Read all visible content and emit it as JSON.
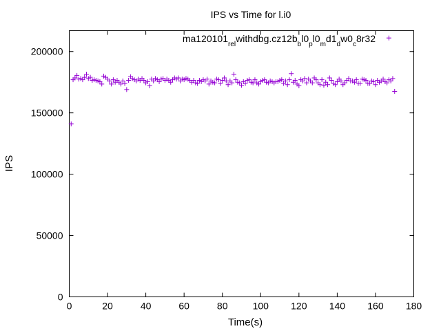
{
  "chart_data": {
    "type": "scatter",
    "title": "IPS vs Time for l.i0",
    "xlabel": "Time(s)",
    "ylabel": "IPS",
    "xlim": [
      0,
      180
    ],
    "ylim": [
      0,
      217000
    ],
    "xticks": [
      0,
      20,
      40,
      60,
      80,
      100,
      120,
      140,
      160,
      180
    ],
    "yticks": [
      0,
      50000,
      100000,
      150000,
      200000
    ],
    "grid": false,
    "legend_position": "top-right",
    "series": [
      {
        "name": "ma120101_rel_withdbg.cz12b_bl0_pl0_md1_dw0_c8r32",
        "name_parts": [
          {
            "text": "ma120101",
            "sub": false
          },
          {
            "text": "rel",
            "sub": true
          },
          {
            "text": "w",
            "sub": false
          },
          {
            "text": "ithdbg.cz12b",
            "sub": false
          },
          {
            "text": "b",
            "sub": true
          },
          {
            "text": "l0",
            "sub": false
          },
          {
            "text": "p",
            "sub": true
          },
          {
            "text": "l0",
            "sub": false
          },
          {
            "text": "m",
            "sub": true
          },
          {
            "text": "d1",
            "sub": false
          },
          {
            "text": "d",
            "sub": true
          },
          {
            "text": "w0",
            "sub": false
          },
          {
            "text": "c",
            "sub": true
          },
          {
            "text": "8r32",
            "sub": false
          }
        ],
        "color": "#9400d3",
        "marker": "plus",
        "x": [
          1,
          2,
          3,
          4,
          5,
          6,
          7,
          8,
          9,
          10,
          11,
          12,
          13,
          14,
          15,
          16,
          17,
          18,
          19,
          20,
          21,
          22,
          23,
          24,
          25,
          26,
          27,
          28,
          29,
          30,
          31,
          32,
          33,
          34,
          35,
          36,
          37,
          38,
          39,
          40,
          41,
          42,
          43,
          44,
          45,
          46,
          47,
          48,
          49,
          50,
          51,
          52,
          53,
          54,
          55,
          56,
          57,
          58,
          59,
          60,
          61,
          62,
          63,
          64,
          65,
          66,
          67,
          68,
          69,
          70,
          71,
          72,
          73,
          74,
          75,
          76,
          77,
          78,
          79,
          80,
          81,
          82,
          83,
          84,
          85,
          86,
          87,
          88,
          89,
          90,
          91,
          92,
          93,
          94,
          95,
          96,
          97,
          98,
          99,
          100,
          101,
          102,
          103,
          104,
          105,
          106,
          107,
          108,
          109,
          110,
          111,
          112,
          113,
          114,
          115,
          116,
          117,
          118,
          119,
          120,
          121,
          122,
          123,
          124,
          125,
          126,
          127,
          128,
          129,
          130,
          131,
          132,
          133,
          134,
          135,
          136,
          137,
          138,
          139,
          140,
          141,
          142,
          143,
          144,
          145,
          146,
          147,
          148,
          149,
          150,
          151,
          152,
          153,
          154,
          155,
          156,
          157,
          158,
          159,
          160,
          161,
          162,
          163,
          164,
          165,
          166,
          167,
          168,
          169,
          170
        ],
        "y": [
          141000,
          177000,
          178500,
          180500,
          177500,
          178000,
          177000,
          179000,
          181500,
          178000,
          179000,
          176500,
          177000,
          176500,
          176000,
          175500,
          173500,
          180000,
          179000,
          177500,
          176000,
          173500,
          177000,
          175000,
          176500,
          175000,
          173500,
          176000,
          174000,
          169000,
          176500,
          179500,
          178000,
          177000,
          176000,
          177500,
          176500,
          178000,
          176500,
          174500,
          175500,
          172000,
          177500,
          176000,
          178000,
          177000,
          175500,
          177500,
          178000,
          176500,
          177500,
          176500,
          175000,
          177000,
          178500,
          177500,
          178500,
          176000,
          177500,
          177000,
          178000,
          177500,
          176500,
          175000,
          176500,
          174500,
          174000,
          176500,
          175500,
          177000,
          176000,
          177500,
          173500,
          176000,
          175000,
          174500,
          177500,
          177000,
          174000,
          176500,
          178500,
          176000,
          173000,
          176000,
          174500,
          181500,
          177000,
          175000,
          174500,
          172500,
          175500,
          174000,
          176500,
          177000,
          175000,
          174500,
          177000,
          174500,
          173500,
          175500,
          176500,
          177000,
          175000,
          174500,
          176000,
          175500,
          174500,
          175500,
          175500,
          176500,
          177000,
          174000,
          176000,
          173000,
          177000,
          182000,
          175000,
          176500,
          173500,
          172000,
          177000,
          176000,
          178000,
          174500,
          177500,
          176000,
          174500,
          178500,
          177000,
          174500,
          173000,
          177000,
          172500,
          175000,
          173000,
          178500,
          176500,
          174000,
          173000,
          175500,
          177500,
          176000,
          173000,
          174500,
          176500,
          178000,
          176000,
          176000,
          175000,
          177000,
          174000,
          174000,
          177500,
          177000,
          176500,
          174000,
          174000,
          176000,
          175500,
          173000,
          176500,
          175000,
          176000,
          177500,
          175500,
          174500,
          177000,
          176000,
          178000,
          167500
        ]
      },
      {
        "x": [
          167
        ],
        "y": [
          211000
        ]
      }
    ]
  }
}
